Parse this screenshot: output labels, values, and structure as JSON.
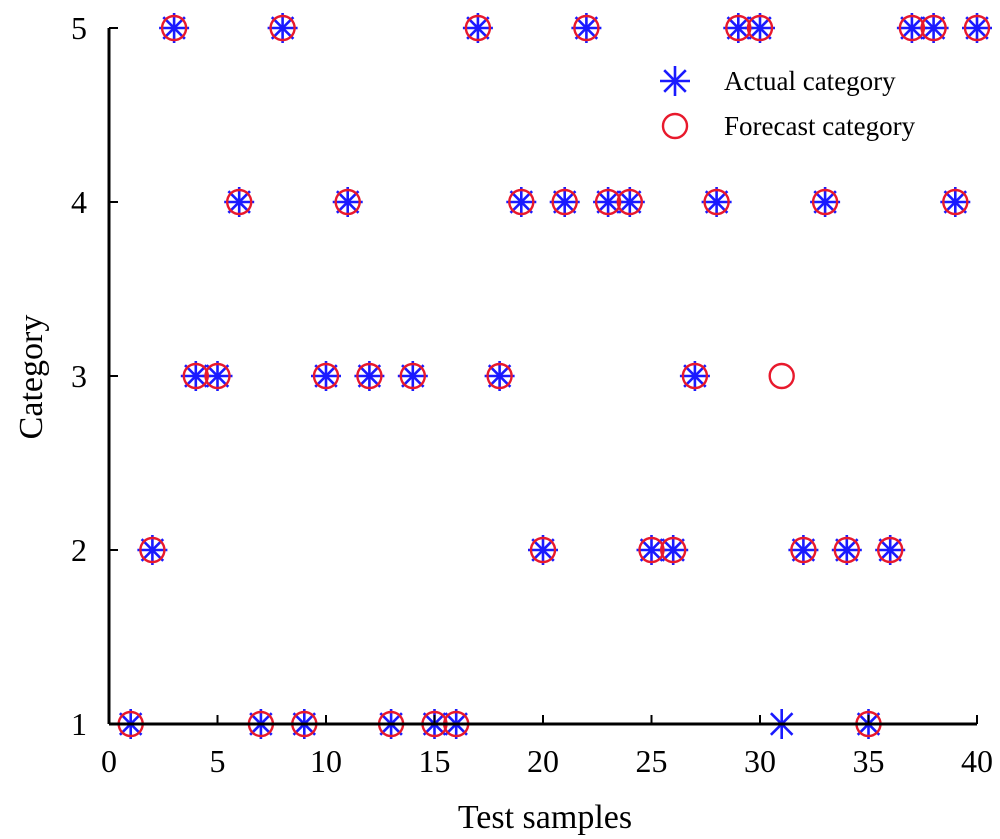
{
  "chart_data": {
    "type": "scatter",
    "xlabel": "Test samples",
    "ylabel": "Category",
    "xlim": [
      0,
      40
    ],
    "ylim": [
      1,
      5
    ],
    "x_ticks": [
      "0",
      "5",
      "10",
      "15",
      "20",
      "25",
      "30",
      "35",
      "40"
    ],
    "y_ticks": [
      "1",
      "2",
      "3",
      "4",
      "5"
    ],
    "grid": false,
    "legend_position": "top-right",
    "series": [
      {
        "name": "Actual category",
        "marker": "asterisk",
        "color": "#1a1aff",
        "x": [
          1,
          2,
          3,
          4,
          5,
          6,
          7,
          8,
          9,
          10,
          11,
          12,
          13,
          14,
          15,
          16,
          17,
          18,
          19,
          20,
          21,
          22,
          23,
          24,
          25,
          26,
          27,
          28,
          29,
          30,
          31,
          32,
          33,
          34,
          35,
          36,
          37,
          38,
          39,
          40
        ],
        "y": [
          1,
          2,
          5,
          3,
          3,
          4,
          1,
          5,
          1,
          3,
          4,
          3,
          1,
          3,
          1,
          1,
          5,
          3,
          4,
          2,
          4,
          5,
          4,
          4,
          2,
          2,
          3,
          4,
          5,
          5,
          1,
          2,
          4,
          2,
          1,
          2,
          5,
          5,
          4,
          5
        ]
      },
      {
        "name": "Forecast category",
        "marker": "circle",
        "color": "#e8192c",
        "x": [
          1,
          2,
          3,
          4,
          5,
          6,
          7,
          8,
          9,
          10,
          11,
          12,
          13,
          14,
          15,
          16,
          17,
          18,
          19,
          20,
          21,
          22,
          23,
          24,
          25,
          26,
          27,
          28,
          29,
          30,
          31,
          32,
          33,
          34,
          35,
          36,
          37,
          38,
          39,
          40
        ],
        "y": [
          1,
          2,
          5,
          3,
          3,
          4,
          1,
          5,
          1,
          3,
          4,
          3,
          1,
          3,
          1,
          1,
          5,
          3,
          4,
          2,
          4,
          5,
          4,
          4,
          2,
          2,
          3,
          4,
          5,
          5,
          3,
          2,
          4,
          2,
          1,
          2,
          5,
          5,
          4,
          5
        ]
      }
    ]
  }
}
